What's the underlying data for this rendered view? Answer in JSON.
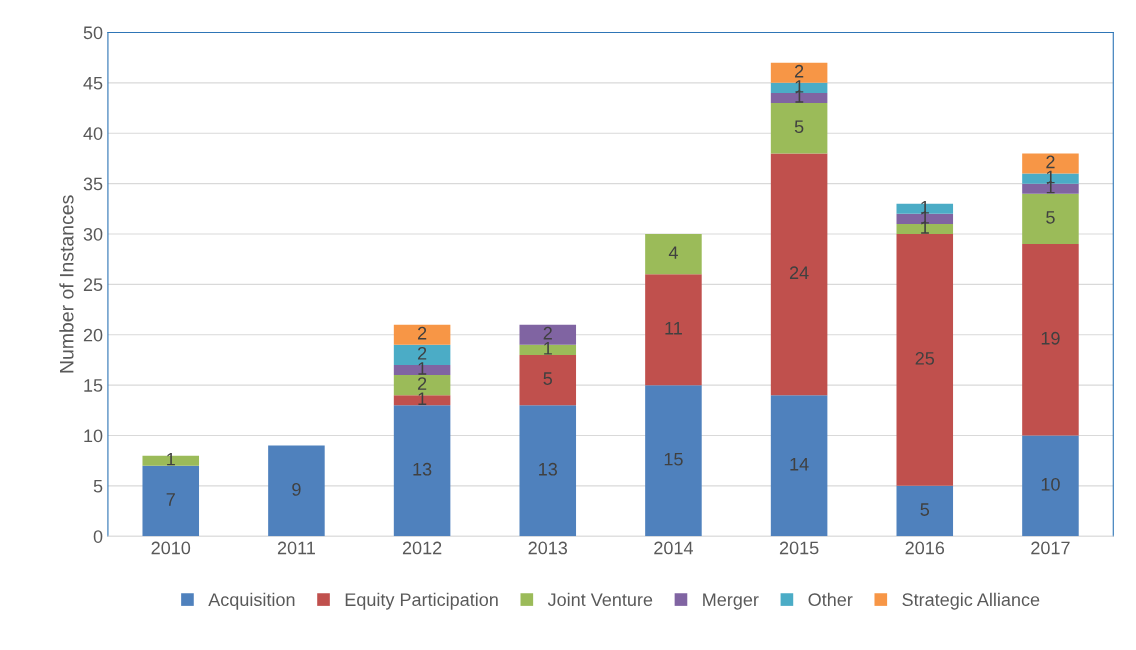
{
  "chart_data": {
    "type": "bar",
    "stacked": true,
    "ylabel": "Number of Instances",
    "categories": [
      "2010",
      "2011",
      "2012",
      "2013",
      "2014",
      "2015",
      "2016",
      "2017"
    ],
    "series": [
      {
        "name": "Acquisition",
        "color": "#4f81bd",
        "values": [
          7,
          9,
          13,
          13,
          15,
          14,
          5,
          10
        ]
      },
      {
        "name": "Equity Participation",
        "color": "#c0504d",
        "values": [
          null,
          null,
          1,
          5,
          11,
          24,
          25,
          19
        ]
      },
      {
        "name": "Joint Venture",
        "color": "#9bbb59",
        "values": [
          1,
          null,
          2,
          1,
          4,
          5,
          1,
          5
        ]
      },
      {
        "name": "Merger",
        "color": "#8064a2",
        "values": [
          null,
          null,
          1,
          2,
          null,
          1,
          1,
          1
        ]
      },
      {
        "name": "Other",
        "color": "#4bacc6",
        "values": [
          null,
          null,
          2,
          null,
          null,
          1,
          1,
          1
        ]
      },
      {
        "name": "Strategic Alliance",
        "color": "#f79646",
        "values": [
          null,
          null,
          2,
          null,
          null,
          2,
          null,
          2
        ]
      }
    ],
    "ylim": [
      0,
      50
    ],
    "yticks": [
      0,
      5,
      10,
      15,
      20,
      25,
      30,
      35,
      40,
      45,
      50
    ],
    "grid": "y",
    "legend": "bottom",
    "data_labels": true
  }
}
